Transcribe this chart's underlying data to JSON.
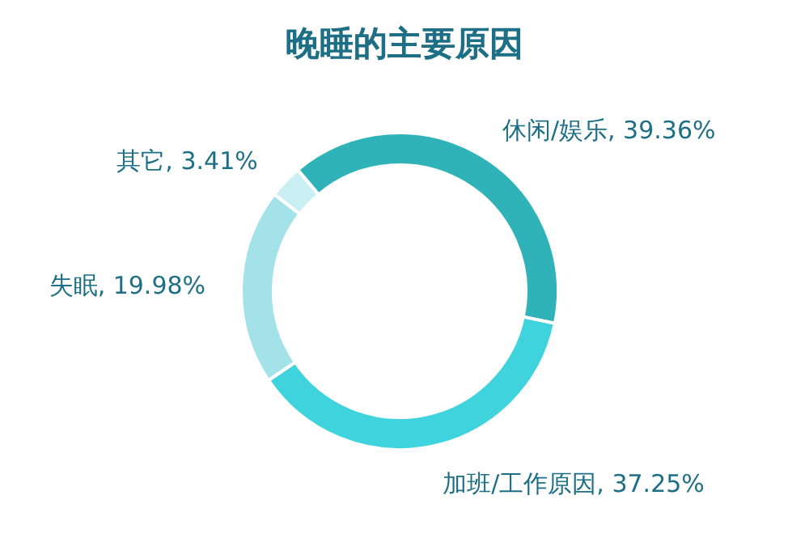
{
  "chart_data": {
    "type": "donut",
    "title": "晚睡的主要原因",
    "categories": [
      "休闲/娱乐",
      "加班/工作原因",
      "失眠",
      "其它"
    ],
    "values": [
      39.36,
      37.25,
      19.98,
      3.41
    ],
    "value_labels": [
      "39.36%",
      "37.25%",
      "19.98%",
      "3.41%"
    ],
    "colors": [
      "#2fb3b8",
      "#3fd3de",
      "#a3e2e9",
      "#c9eff2"
    ]
  }
}
